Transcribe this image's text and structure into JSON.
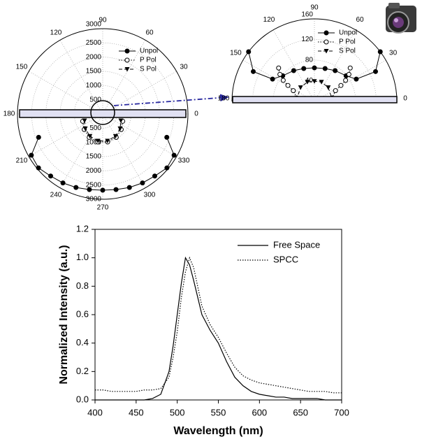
{
  "chart_data": [
    {
      "type": "polar",
      "rlim": [
        0,
        3000
      ],
      "rticks": [
        500,
        1000,
        1500,
        2000,
        2500,
        3000
      ],
      "thetalim": [
        0,
        360
      ],
      "thetaticks": [
        0,
        30,
        60,
        90,
        120,
        150,
        180,
        210,
        240,
        270,
        300,
        330
      ],
      "series": [
        {
          "name": "Unpol",
          "color": "#000000",
          "marker": "circle",
          "line_style": "solid",
          "theta": [
            200,
            210,
            220,
            230,
            240,
            250,
            260,
            270,
            280,
            290,
            300,
            310,
            320,
            330,
            340
          ],
          "r": [
            2400,
            2900,
            2950,
            2850,
            2800,
            2750,
            2700,
            2680,
            2700,
            2750,
            2800,
            2850,
            2950,
            2900,
            2400
          ]
        },
        {
          "name": "P Pol",
          "color": "#000000",
          "marker": "open-circle",
          "line_style": "dotted",
          "theta": [
            200,
            220,
            240,
            260,
            280,
            300,
            320,
            340
          ],
          "r": [
            750,
            850,
            950,
            1000,
            1000,
            950,
            850,
            750
          ]
        },
        {
          "name": "S Pol",
          "color": "#000000",
          "marker": "triangle-down",
          "line_style": "dashed",
          "theta": [
            200,
            220,
            240,
            260,
            280,
            300,
            320,
            340
          ],
          "r": [
            680,
            800,
            900,
            960,
            960,
            900,
            800,
            680
          ]
        }
      ]
    },
    {
      "type": "polar",
      "rlim": [
        0,
        160
      ],
      "rticks": [
        40,
        80,
        120,
        160
      ],
      "thetalim": [
        0,
        180
      ],
      "thetaticks": [
        0,
        30,
        60,
        90,
        120,
        150,
        180
      ],
      "series": [
        {
          "name": "Unpol",
          "color": "#000000",
          "marker": "circle",
          "line_style": "solid",
          "theta": [
            143,
            154,
            152,
            141,
            124,
            108,
            90,
            72,
            56,
            39,
            28,
            26,
            37
          ],
          "r": [
            160,
            132,
            92,
            79,
            72,
            67,
            65,
            67,
            72,
            79,
            92,
            132,
            160
          ]
        },
        {
          "name": "P Pol",
          "color": "#000000",
          "marker": "open-circle",
          "line_style": "dotted",
          "theta": [
            137,
            142,
            146,
            149,
            153,
            169,
            11,
            27,
            31,
            34,
            38,
            43
          ],
          "r": [
            95,
            85,
            73,
            60,
            46,
            35,
            35,
            46,
            60,
            73,
            85,
            95
          ]
        },
        {
          "name": "S Pol",
          "color": "#000000",
          "marker": "triangle-down",
          "line_style": "dashed",
          "theta": [
            175,
            135,
            110,
            90,
            70,
            45,
            5
          ],
          "r": [
            35,
            38,
            40,
            39,
            40,
            38,
            35
          ]
        }
      ]
    },
    {
      "type": "line",
      "x_label": "Wavelength (nm)",
      "y_label": "Normalized Intensity (a.u.)",
      "xlim": [
        400,
        700
      ],
      "xticks": [
        400,
        450,
        500,
        550,
        600,
        650,
        700
      ],
      "ylim": [
        0,
        1.2
      ],
      "yticks": [
        {
          "value": 0,
          "label": "0.0"
        },
        0.2,
        0.4,
        0.6,
        0.8,
        {
          "value": 1,
          "label": "1.0"
        },
        1.2
      ],
      "x": [
        400,
        410,
        420,
        430,
        440,
        450,
        460,
        470,
        480,
        490,
        495,
        500,
        505,
        510,
        515,
        520,
        530,
        540,
        550,
        560,
        570,
        580,
        590,
        600,
        610,
        620,
        630,
        640,
        650,
        660,
        670,
        680,
        690,
        700
      ],
      "series": [
        {
          "name": "Free Space",
          "color": "#000000",
          "line_style": "solid",
          "values": [
            0,
            0,
            0,
            0,
            0,
            0,
            0,
            0.01,
            0.04,
            0.2,
            0.38,
            0.6,
            0.82,
            1.0,
            0.95,
            0.84,
            0.6,
            0.49,
            0.4,
            0.27,
            0.16,
            0.1,
            0.06,
            0.04,
            0.03,
            0.02,
            0.02,
            0.01,
            0.01,
            0.01,
            0.01,
            0,
            0,
            0
          ]
        },
        {
          "name": "SPCC",
          "color": "#000000",
          "line_style": "dotted",
          "values": [
            0.07,
            0.07,
            0.06,
            0.06,
            0.06,
            0.06,
            0.07,
            0.07,
            0.08,
            0.16,
            0.3,
            0.48,
            0.72,
            0.9,
            1.0,
            0.93,
            0.66,
            0.53,
            0.44,
            0.33,
            0.23,
            0.17,
            0.14,
            0.12,
            0.11,
            0.1,
            0.09,
            0.08,
            0.07,
            0.06,
            0.06,
            0.06,
            0.05,
            0.05
          ]
        }
      ]
    }
  ]
}
